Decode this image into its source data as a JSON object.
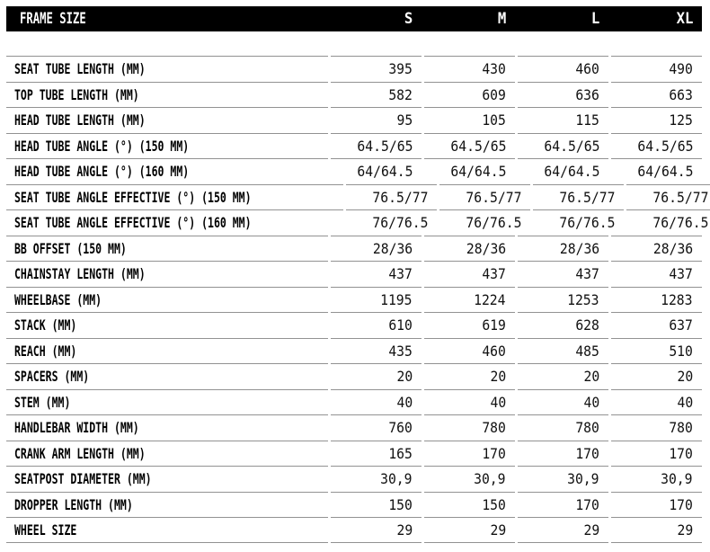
{
  "chart_data": {
    "type": "table",
    "title": "FRAME SIZE",
    "columns": [
      "S",
      "M",
      "L",
      "XL"
    ],
    "rows": [
      {
        "label": "SEAT TUBE LENGTH (MM)",
        "values": [
          "395",
          "430",
          "460",
          "490"
        ]
      },
      {
        "label": "TOP TUBE LENGTH (MM)",
        "values": [
          "582",
          "609",
          "636",
          "663"
        ]
      },
      {
        "label": "HEAD TUBE LENGTH (MM)",
        "values": [
          "95",
          "105",
          "115",
          "125"
        ]
      },
      {
        "label": "HEAD TUBE ANGLE (°) (150 MM)",
        "values": [
          "64.5/65",
          "64.5/65",
          "64.5/65",
          "64.5/65"
        ]
      },
      {
        "label": "HEAD TUBE ANGLE (°) (160 MM)",
        "values": [
          "64/64.5",
          "64/64.5",
          "64/64.5",
          "64/64.5"
        ]
      },
      {
        "label": "SEAT TUBE ANGLE EFFECTIVE (°) (150 MM)",
        "values": [
          "76.5/77",
          "76.5/77",
          "76.5/77",
          "76.5/77"
        ]
      },
      {
        "label": "SEAT TUBE ANGLE EFFECTIVE (°) (160 MM)",
        "values": [
          "76/76.5",
          "76/76.5",
          "76/76.5",
          "76/76.5"
        ]
      },
      {
        "label": "BB OFFSET (150 MM)",
        "values": [
          "28/36",
          "28/36",
          "28/36",
          "28/36"
        ]
      },
      {
        "label": "CHAINSTAY LENGTH (MM)",
        "values": [
          "437",
          "437",
          "437",
          "437"
        ]
      },
      {
        "label": "WHEELBASE (MM)",
        "values": [
          "1195",
          "1224",
          "1253",
          "1283"
        ]
      },
      {
        "label": "STACK (MM)",
        "values": [
          "610",
          "619",
          "628",
          "637"
        ]
      },
      {
        "label": "REACH (MM)",
        "values": [
          "435",
          "460",
          "485",
          "510"
        ]
      },
      {
        "label": "SPACERS (MM)",
        "values": [
          "20",
          "20",
          "20",
          "20"
        ]
      },
      {
        "label": "STEM (MM)",
        "values": [
          "40",
          "40",
          "40",
          "40"
        ]
      },
      {
        "label": "HANDLEBAR WIDTH (MM)",
        "values": [
          "760",
          "780",
          "780",
          "780"
        ]
      },
      {
        "label": "CRANK ARM LENGTH (MM)",
        "values": [
          "165",
          "170",
          "170",
          "170"
        ]
      },
      {
        "label": "SEATPOST DIAMETER (MM)",
        "values": [
          "30,9",
          "30,9",
          "30,9",
          "30,9"
        ]
      },
      {
        "label": "DROPPER LENGTH (MM)",
        "values": [
          "150",
          "150",
          "170",
          "170"
        ]
      },
      {
        "label": "WHEEL SIZE",
        "values": [
          "29",
          "29",
          "29",
          "29"
        ]
      }
    ],
    "layout": {
      "value_alignment": "right",
      "grid": "horizontal-dividers-only",
      "legend_position": "none"
    }
  },
  "colors": {
    "header_bg": "#000000",
    "header_text": "#ffffff",
    "body_text": "#111111",
    "label_text": "#000000",
    "divider": "#929292",
    "background": "#ffffff"
  }
}
